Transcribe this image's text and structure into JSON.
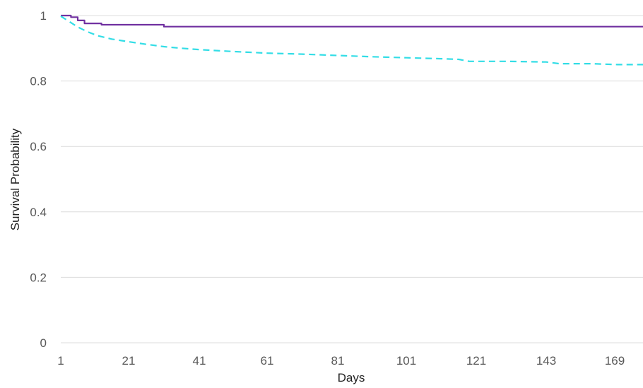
{
  "chart_data": {
    "type": "line",
    "title": "",
    "xlabel": "Days",
    "ylabel": "Survival Probability",
    "xlim": [
      1,
      181
    ],
    "ylim": [
      0,
      1
    ],
    "grid": true,
    "legend": "none",
    "x_ticks": [
      1,
      21,
      41,
      61,
      81,
      101,
      121,
      143,
      169
    ],
    "y_ticks": [
      0,
      0.2,
      0.4,
      0.6,
      0.8,
      1
    ],
    "y_tick_labels": [
      "0",
      "0.2",
      "0.4",
      "0.6",
      "0.8",
      "1"
    ],
    "series": [
      {
        "color": "#7030a0",
        "style": "solid",
        "step": true,
        "points": [
          [
            1,
            1.0
          ],
          [
            4,
            0.995
          ],
          [
            6,
            0.985
          ],
          [
            8,
            0.976
          ],
          [
            13,
            0.972
          ],
          [
            31,
            0.966
          ],
          [
            181,
            0.966
          ]
        ]
      },
      {
        "color": "#33dde6",
        "style": "dashed",
        "step": false,
        "points": [
          [
            1,
            0.998
          ],
          [
            3,
            0.985
          ],
          [
            6,
            0.965
          ],
          [
            9,
            0.95
          ],
          [
            12,
            0.938
          ],
          [
            16,
            0.928
          ],
          [
            21,
            0.92
          ],
          [
            26,
            0.912
          ],
          [
            31,
            0.905
          ],
          [
            36,
            0.9
          ],
          [
            41,
            0.896
          ],
          [
            51,
            0.89
          ],
          [
            61,
            0.885
          ],
          [
            71,
            0.882
          ],
          [
            81,
            0.878
          ],
          [
            91,
            0.874
          ],
          [
            101,
            0.871
          ],
          [
            111,
            0.868
          ],
          [
            116,
            0.866
          ],
          [
            119,
            0.86
          ],
          [
            131,
            0.86
          ],
          [
            143,
            0.858
          ],
          [
            148,
            0.853
          ],
          [
            160,
            0.853
          ],
          [
            170,
            0.85
          ],
          [
            181,
            0.85
          ]
        ]
      }
    ]
  }
}
